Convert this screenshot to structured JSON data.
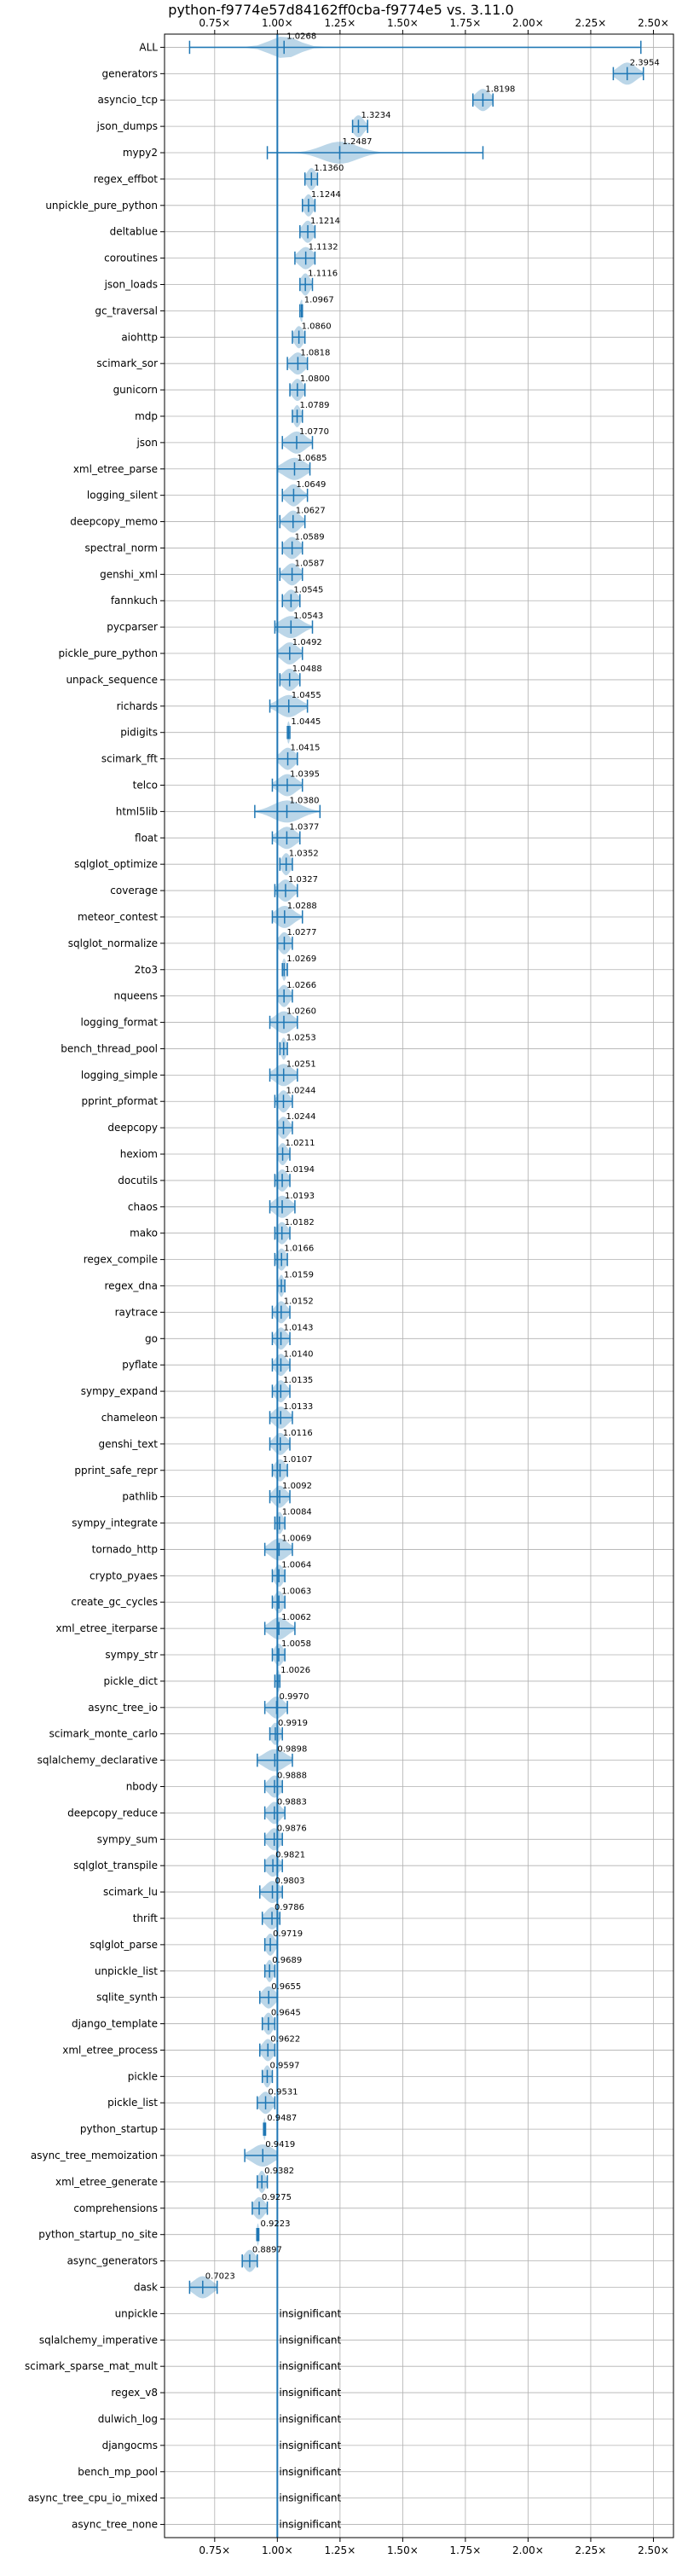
{
  "chart_data": {
    "type": "violin",
    "title": "python-f9774e57d84162ff0cba-f9774e5 vs. 3.11.0",
    "xlabel": "",
    "ylabel": "",
    "x_tick_labels": [
      "0.75×",
      "1.00×",
      "1.25×",
      "1.50×",
      "1.75×",
      "2.00×",
      "2.25×",
      "2.50×"
    ],
    "x_tick_values": [
      0.75,
      1.0,
      1.25,
      1.5,
      1.75,
      2.0,
      2.25,
      2.5
    ],
    "xlim": [
      0.55,
      2.58
    ],
    "reference_line": 1.0,
    "grid": true,
    "colors": {
      "violin": "#1f77b4",
      "grid": "#b0b0b0",
      "line": "#1f77b4"
    },
    "insignificant_label": "insignificant",
    "benchmarks": [
      {
        "name": "ALL",
        "value": 1.0268,
        "min": 0.65,
        "max": 2.45,
        "spread": 0.08,
        "label": "1.0268"
      },
      {
        "name": "generators",
        "value": 2.3954,
        "min": 2.34,
        "max": 2.46,
        "spread": 0.05,
        "label": "2.3954"
      },
      {
        "name": "asyncio_tcp",
        "value": 1.8198,
        "min": 1.78,
        "max": 1.86,
        "spread": 0.04,
        "label": "1.8198"
      },
      {
        "name": "json_dumps",
        "value": 1.3234,
        "min": 1.3,
        "max": 1.36,
        "spread": 0.03,
        "label": "1.3234"
      },
      {
        "name": "mypy2",
        "value": 1.2487,
        "min": 0.96,
        "max": 1.82,
        "spread": 0.1,
        "label": "1.2487"
      },
      {
        "name": "regex_effbot",
        "value": 1.136,
        "min": 1.11,
        "max": 1.16,
        "spread": 0.025,
        "label": "1.1360"
      },
      {
        "name": "unpickle_pure_python",
        "value": 1.1244,
        "min": 1.1,
        "max": 1.15,
        "spread": 0.025,
        "label": "1.1244"
      },
      {
        "name": "deltablue",
        "value": 1.1214,
        "min": 1.09,
        "max": 1.15,
        "spread": 0.03,
        "label": "1.1214"
      },
      {
        "name": "coroutines",
        "value": 1.1132,
        "min": 1.07,
        "max": 1.15,
        "spread": 0.04,
        "label": "1.1132"
      },
      {
        "name": "json_loads",
        "value": 1.1116,
        "min": 1.09,
        "max": 1.14,
        "spread": 0.025,
        "label": "1.1116"
      },
      {
        "name": "gc_traversal",
        "value": 1.0967,
        "min": 1.09,
        "max": 1.1,
        "spread": 0.01,
        "label": "1.0967"
      },
      {
        "name": "aiohttp",
        "value": 1.086,
        "min": 1.06,
        "max": 1.11,
        "spread": 0.025,
        "label": "1.0860"
      },
      {
        "name": "scimark_sor",
        "value": 1.0818,
        "min": 1.04,
        "max": 1.12,
        "spread": 0.04,
        "label": "1.0818"
      },
      {
        "name": "gunicorn",
        "value": 1.08,
        "min": 1.05,
        "max": 1.11,
        "spread": 0.03,
        "label": "1.0800"
      },
      {
        "name": "mdp",
        "value": 1.0789,
        "min": 1.06,
        "max": 1.1,
        "spread": 0.02,
        "label": "1.0789"
      },
      {
        "name": "json",
        "value": 1.077,
        "min": 1.02,
        "max": 1.14,
        "spread": 0.05,
        "label": "1.0770"
      },
      {
        "name": "xml_etree_parse",
        "value": 1.0685,
        "min": 1.0,
        "max": 1.13,
        "spread": 0.06,
        "label": "1.0685"
      },
      {
        "name": "logging_silent",
        "value": 1.0649,
        "min": 1.02,
        "max": 1.12,
        "spread": 0.04,
        "label": "1.0649"
      },
      {
        "name": "deepcopy_memo",
        "value": 1.0627,
        "min": 1.01,
        "max": 1.11,
        "spread": 0.04,
        "label": "1.0627"
      },
      {
        "name": "spectral_norm",
        "value": 1.0589,
        "min": 1.02,
        "max": 1.1,
        "spread": 0.04,
        "label": "1.0589"
      },
      {
        "name": "genshi_xml",
        "value": 1.0587,
        "min": 1.01,
        "max": 1.1,
        "spread": 0.04,
        "label": "1.0587"
      },
      {
        "name": "fannkuch",
        "value": 1.0545,
        "min": 1.02,
        "max": 1.09,
        "spread": 0.035,
        "label": "1.0545"
      },
      {
        "name": "pycparser",
        "value": 1.0543,
        "min": 0.99,
        "max": 1.14,
        "spread": 0.06,
        "label": "1.0543"
      },
      {
        "name": "pickle_pure_python",
        "value": 1.0492,
        "min": 1.0,
        "max": 1.1,
        "spread": 0.045,
        "label": "1.0492"
      },
      {
        "name": "unpack_sequence",
        "value": 1.0488,
        "min": 1.01,
        "max": 1.09,
        "spread": 0.04,
        "label": "1.0488"
      },
      {
        "name": "richards",
        "value": 1.0455,
        "min": 0.97,
        "max": 1.12,
        "spread": 0.06,
        "label": "1.0455"
      },
      {
        "name": "pidigits",
        "value": 1.0445,
        "min": 1.04,
        "max": 1.05,
        "spread": 0.008,
        "label": "1.0445"
      },
      {
        "name": "scimark_fft",
        "value": 1.0415,
        "min": 1.0,
        "max": 1.08,
        "spread": 0.04,
        "label": "1.0415"
      },
      {
        "name": "telco",
        "value": 1.0395,
        "min": 0.98,
        "max": 1.1,
        "spread": 0.05,
        "label": "1.0395"
      },
      {
        "name": "html5lib",
        "value": 1.038,
        "min": 0.91,
        "max": 1.17,
        "spread": 0.08,
        "label": "1.0380"
      },
      {
        "name": "float",
        "value": 1.0377,
        "min": 0.98,
        "max": 1.09,
        "spread": 0.05,
        "label": "1.0377"
      },
      {
        "name": "sqlglot_optimize",
        "value": 1.0352,
        "min": 1.01,
        "max": 1.06,
        "spread": 0.025,
        "label": "1.0352"
      },
      {
        "name": "coverage",
        "value": 1.0327,
        "min": 0.99,
        "max": 1.08,
        "spread": 0.04,
        "label": "1.0327"
      },
      {
        "name": "meteor_contest",
        "value": 1.0288,
        "min": 0.98,
        "max": 1.1,
        "spread": 0.05,
        "label": "1.0288"
      },
      {
        "name": "sqlglot_normalize",
        "value": 1.0277,
        "min": 1.0,
        "max": 1.06,
        "spread": 0.03,
        "label": "1.0277"
      },
      {
        "name": "2to3",
        "value": 1.0269,
        "min": 1.02,
        "max": 1.04,
        "spread": 0.012,
        "label": "1.0269"
      },
      {
        "name": "nqueens",
        "value": 1.0266,
        "min": 1.0,
        "max": 1.06,
        "spread": 0.03,
        "label": "1.0266"
      },
      {
        "name": "logging_format",
        "value": 1.026,
        "min": 0.97,
        "max": 1.08,
        "spread": 0.05,
        "label": "1.0260"
      },
      {
        "name": "bench_thread_pool",
        "value": 1.0253,
        "min": 1.01,
        "max": 1.04,
        "spread": 0.015,
        "label": "1.0253"
      },
      {
        "name": "logging_simple",
        "value": 1.0251,
        "min": 0.97,
        "max": 1.08,
        "spread": 0.05,
        "label": "1.0251"
      },
      {
        "name": "pprint_pformat",
        "value": 1.0244,
        "min": 0.99,
        "max": 1.06,
        "spread": 0.03,
        "label": "1.0244"
      },
      {
        "name": "deepcopy",
        "value": 1.0244,
        "min": 1.0,
        "max": 1.06,
        "spread": 0.03,
        "label": "1.0244"
      },
      {
        "name": "hexiom",
        "value": 1.0211,
        "min": 1.0,
        "max": 1.05,
        "spread": 0.025,
        "label": "1.0211"
      },
      {
        "name": "docutils",
        "value": 1.0194,
        "min": 0.99,
        "max": 1.05,
        "spread": 0.03,
        "label": "1.0194"
      },
      {
        "name": "chaos",
        "value": 1.0193,
        "min": 0.97,
        "max": 1.07,
        "spread": 0.045,
        "label": "1.0193"
      },
      {
        "name": "mako",
        "value": 1.0182,
        "min": 0.99,
        "max": 1.05,
        "spread": 0.03,
        "label": "1.0182"
      },
      {
        "name": "regex_compile",
        "value": 1.0166,
        "min": 0.99,
        "max": 1.04,
        "spread": 0.025,
        "label": "1.0166"
      },
      {
        "name": "regex_dna",
        "value": 1.0159,
        "min": 1.0,
        "max": 1.03,
        "spread": 0.015,
        "label": "1.0159"
      },
      {
        "name": "raytrace",
        "value": 1.0152,
        "min": 0.98,
        "max": 1.05,
        "spread": 0.03,
        "label": "1.0152"
      },
      {
        "name": "go",
        "value": 1.0143,
        "min": 0.98,
        "max": 1.05,
        "spread": 0.03,
        "label": "1.0143"
      },
      {
        "name": "pyflate",
        "value": 1.014,
        "min": 0.98,
        "max": 1.05,
        "spread": 0.03,
        "label": "1.0140"
      },
      {
        "name": "sympy_expand",
        "value": 1.0135,
        "min": 0.98,
        "max": 1.05,
        "spread": 0.03,
        "label": "1.0135"
      },
      {
        "name": "chameleon",
        "value": 1.0133,
        "min": 0.97,
        "max": 1.06,
        "spread": 0.04,
        "label": "1.0133"
      },
      {
        "name": "genshi_text",
        "value": 1.0116,
        "min": 0.97,
        "max": 1.05,
        "spread": 0.035,
        "label": "1.0116"
      },
      {
        "name": "pprint_safe_repr",
        "value": 1.0107,
        "min": 0.98,
        "max": 1.04,
        "spread": 0.03,
        "label": "1.0107"
      },
      {
        "name": "pathlib",
        "value": 1.0092,
        "min": 0.97,
        "max": 1.05,
        "spread": 0.035,
        "label": "1.0092"
      },
      {
        "name": "sympy_integrate",
        "value": 1.0084,
        "min": 0.99,
        "max": 1.03,
        "spread": 0.02,
        "label": "1.0084"
      },
      {
        "name": "tornado_http",
        "value": 1.0069,
        "min": 0.95,
        "max": 1.06,
        "spread": 0.05,
        "label": "1.0069"
      },
      {
        "name": "crypto_pyaes",
        "value": 1.0064,
        "min": 0.98,
        "max": 1.03,
        "spread": 0.025,
        "label": "1.0064"
      },
      {
        "name": "create_gc_cycles",
        "value": 1.0063,
        "min": 0.98,
        "max": 1.03,
        "spread": 0.025,
        "label": "1.0063"
      },
      {
        "name": "xml_etree_iterparse",
        "value": 1.0062,
        "min": 0.95,
        "max": 1.07,
        "spread": 0.05,
        "label": "1.0062"
      },
      {
        "name": "sympy_str",
        "value": 1.0058,
        "min": 0.98,
        "max": 1.03,
        "spread": 0.025,
        "label": "1.0058"
      },
      {
        "name": "pickle_dict",
        "value": 1.0026,
        "min": 0.99,
        "max": 1.01,
        "spread": 0.012,
        "label": "1.0026"
      },
      {
        "name": "async_tree_io",
        "value": 0.997,
        "min": 0.95,
        "max": 1.04,
        "spread": 0.04,
        "label": "0.9970"
      },
      {
        "name": "scimark_monte_carlo",
        "value": 0.9919,
        "min": 0.97,
        "max": 1.02,
        "spread": 0.025,
        "label": "0.9919"
      },
      {
        "name": "sqlalchemy_declarative",
        "value": 0.9898,
        "min": 0.92,
        "max": 1.06,
        "spread": 0.06,
        "label": "0.9898"
      },
      {
        "name": "nbody",
        "value": 0.9888,
        "min": 0.95,
        "max": 1.02,
        "spread": 0.035,
        "label": "0.9888"
      },
      {
        "name": "deepcopy_reduce",
        "value": 0.9883,
        "min": 0.95,
        "max": 1.03,
        "spread": 0.035,
        "label": "0.9883"
      },
      {
        "name": "sympy_sum",
        "value": 0.9876,
        "min": 0.95,
        "max": 1.02,
        "spread": 0.035,
        "label": "0.9876"
      },
      {
        "name": "sqlglot_transpile",
        "value": 0.9821,
        "min": 0.95,
        "max": 1.02,
        "spread": 0.035,
        "label": "0.9821"
      },
      {
        "name": "scimark_lu",
        "value": 0.9803,
        "min": 0.93,
        "max": 1.02,
        "spread": 0.04,
        "label": "0.9803"
      },
      {
        "name": "thrift",
        "value": 0.9786,
        "min": 0.94,
        "max": 1.01,
        "spread": 0.035,
        "label": "0.9786"
      },
      {
        "name": "sqlglot_parse",
        "value": 0.9719,
        "min": 0.95,
        "max": 1.0,
        "spread": 0.025,
        "label": "0.9719"
      },
      {
        "name": "unpickle_list",
        "value": 0.9689,
        "min": 0.95,
        "max": 0.99,
        "spread": 0.02,
        "label": "0.9689"
      },
      {
        "name": "sqlite_synth",
        "value": 0.9655,
        "min": 0.93,
        "max": 1.0,
        "spread": 0.035,
        "label": "0.9655"
      },
      {
        "name": "django_template",
        "value": 0.9645,
        "min": 0.94,
        "max": 0.99,
        "spread": 0.025,
        "label": "0.9645"
      },
      {
        "name": "xml_etree_process",
        "value": 0.9622,
        "min": 0.93,
        "max": 0.99,
        "spread": 0.03,
        "label": "0.9622"
      },
      {
        "name": "pickle",
        "value": 0.9597,
        "min": 0.94,
        "max": 0.98,
        "spread": 0.02,
        "label": "0.9597"
      },
      {
        "name": "pickle_list",
        "value": 0.9531,
        "min": 0.92,
        "max": 0.99,
        "spread": 0.035,
        "label": "0.9531"
      },
      {
        "name": "python_startup",
        "value": 0.9487,
        "min": 0.945,
        "max": 0.953,
        "spread": 0.006,
        "label": "0.9487"
      },
      {
        "name": "async_tree_memoization",
        "value": 0.9419,
        "min": 0.87,
        "max": 1.0,
        "spread": 0.06,
        "label": "0.9419"
      },
      {
        "name": "xml_etree_generate",
        "value": 0.9382,
        "min": 0.92,
        "max": 0.96,
        "spread": 0.02,
        "label": "0.9382"
      },
      {
        "name": "comprehensions",
        "value": 0.9275,
        "min": 0.9,
        "max": 0.96,
        "spread": 0.03,
        "label": "0.9275"
      },
      {
        "name": "python_startup_no_site",
        "value": 0.9223,
        "min": 0.918,
        "max": 0.926,
        "spread": 0.006,
        "label": "0.9223"
      },
      {
        "name": "async_generators",
        "value": 0.8897,
        "min": 0.86,
        "max": 0.92,
        "spread": 0.03,
        "label": "0.8897"
      },
      {
        "name": "dask",
        "value": 0.7023,
        "min": 0.65,
        "max": 0.76,
        "spread": 0.05,
        "label": "0.7023"
      },
      {
        "name": "unpickle",
        "value": null,
        "label": "insignificant"
      },
      {
        "name": "sqlalchemy_imperative",
        "value": null,
        "label": "insignificant"
      },
      {
        "name": "scimark_sparse_mat_mult",
        "value": null,
        "label": "insignificant"
      },
      {
        "name": "regex_v8",
        "value": null,
        "label": "insignificant"
      },
      {
        "name": "dulwich_log",
        "value": null,
        "label": "insignificant"
      },
      {
        "name": "djangocms",
        "value": null,
        "label": "insignificant"
      },
      {
        "name": "bench_mp_pool",
        "value": null,
        "label": "insignificant"
      },
      {
        "name": "async_tree_cpu_io_mixed",
        "value": null,
        "label": "insignificant"
      },
      {
        "name": "async_tree_none",
        "value": null,
        "label": "insignificant"
      }
    ]
  }
}
